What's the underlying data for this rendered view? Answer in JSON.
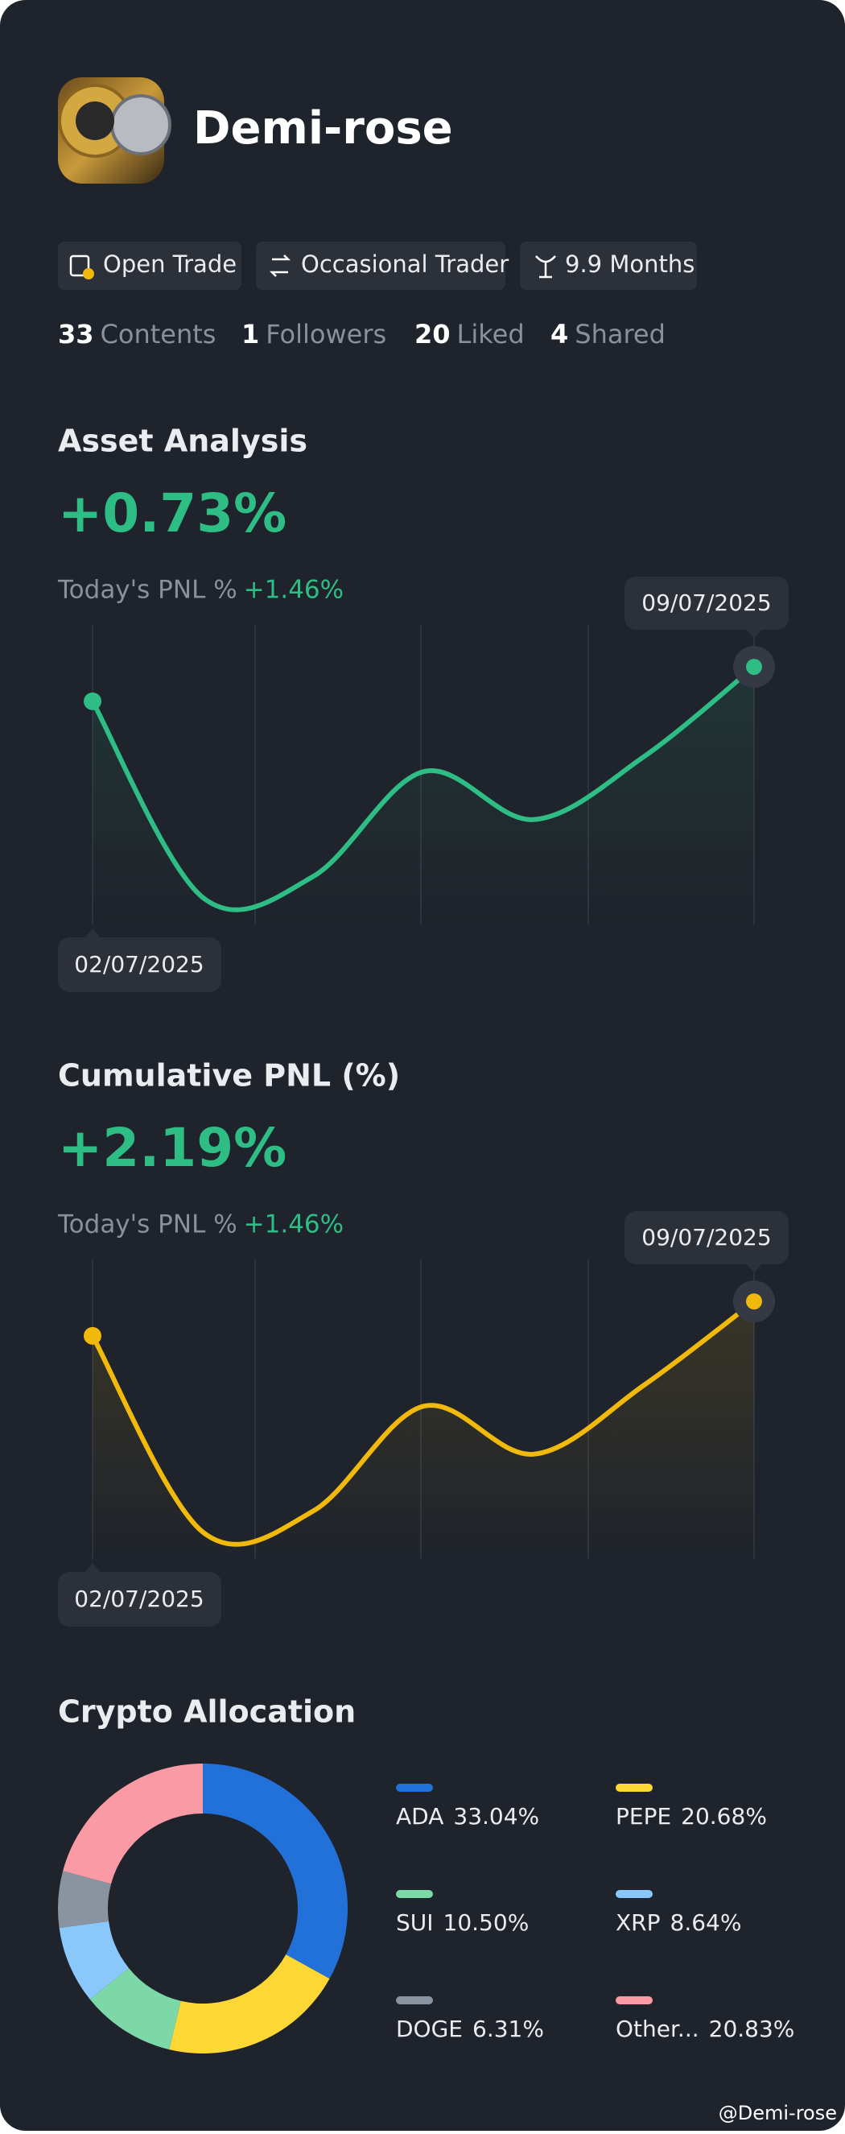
{
  "profile": {
    "name": "Demi-rose",
    "tags": [
      "Open Trade",
      "Occasional Trader",
      "9.9 Months"
    ],
    "stats": [
      {
        "value": 33,
        "label": "Contents"
      },
      {
        "value": 1,
        "label": "Followers"
      },
      {
        "value": 20,
        "label": "Liked"
      },
      {
        "value": 4,
        "label": "Shared"
      }
    ]
  },
  "chart_data": [
    {
      "type": "line",
      "title": "Asset Analysis",
      "headline": "+0.73%",
      "subtitle": "Today's PNL %",
      "change": "+1.46%",
      "categories": [
        "02/07/2025",
        null,
        null,
        null,
        null,
        null,
        "09/07/2025"
      ],
      "values": [
        74.5,
        9,
        16,
        51,
        35,
        56,
        86
      ],
      "color": "#2ebd85",
      "ylim": [
        0,
        100
      ]
    },
    {
      "type": "line",
      "title": "Cumulative PNL (%)",
      "headline": "+2.19%",
      "subtitle": "Today's PNL %",
      "change": "+1.46%",
      "categories": [
        "02/07/2025",
        null,
        null,
        null,
        null,
        null,
        "09/07/2025"
      ],
      "values": [
        74.5,
        9,
        16,
        51,
        35,
        58,
        86
      ],
      "color": "#f0b90b",
      "ylim": [
        0,
        100
      ]
    },
    {
      "type": "pie",
      "title": "Crypto Allocation",
      "categories": [
        "ADA",
        "PEPE",
        "SUI",
        "XRP",
        "DOGE",
        "Other..."
      ],
      "values": [
        33.04,
        20.68,
        10.5,
        8.64,
        6.31,
        20.83
      ],
      "value_labels": [
        "33.04%",
        "20.68%",
        "10.50%",
        "8.64%",
        "6.31%",
        "20.83%"
      ],
      "colors": [
        "#2271d9",
        "#fdd835",
        "#7dd8a8",
        "#8ac7fb",
        "#8a93a0",
        "#f99aa4"
      ]
    }
  ],
  "watermark": "@Demi-rose"
}
